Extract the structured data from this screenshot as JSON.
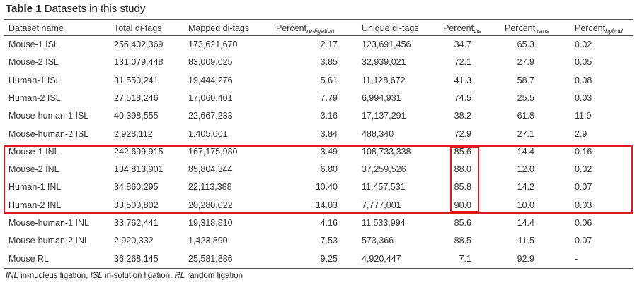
{
  "table": {
    "title_bold": "Table 1",
    "title_rest": "Datasets in this study",
    "headers": {
      "name": "Dataset name",
      "total": "Total di-tags",
      "mapped": "Mapped di-tags",
      "relig_base": "Percent",
      "relig_sub": "re-ligation",
      "unique": "Unique di-tags",
      "cis_base": "Percent",
      "cis_sub": "cis",
      "trans_base": "Percent",
      "trans_sub": "trans",
      "hybrid_base": "Percent",
      "hybrid_sub": "hybrid"
    },
    "rows": [
      {
        "name": "Mouse-1 ISL",
        "total": "255,402,369",
        "mapped": "173,621,670",
        "relig": "2.17",
        "unique": "123,691,456",
        "cis": "34.7",
        "trans": "65.3",
        "hybrid": "0.02"
      },
      {
        "name": "Mouse-2 ISL",
        "total": "131,079,448",
        "mapped": "83,009,025",
        "relig": "3.85",
        "unique": "32,939,021",
        "cis": "72.1",
        "trans": "27.9",
        "hybrid": "0.05"
      },
      {
        "name": "Human-1 ISL",
        "total": "31,550,241",
        "mapped": "19,444,276",
        "relig": "5.61",
        "unique": "11,128,672",
        "cis": "41.3",
        "trans": "58.7",
        "hybrid": "0.08"
      },
      {
        "name": "Human-2 ISL",
        "total": "27,518,246",
        "mapped": "17,060,401",
        "relig": "7.79",
        "unique": "6,994,931",
        "cis": "74.5",
        "trans": "25.5",
        "hybrid": "0.03"
      },
      {
        "name": "Mouse-human-1 ISL",
        "total": "40,398,555",
        "mapped": "22,667,233",
        "relig": "3.16",
        "unique": "17,137,291",
        "cis": "38.2",
        "trans": "61.8",
        "hybrid": "11.9"
      },
      {
        "name": "Mouse-human-2 ISL",
        "total": "2,928,112",
        "mapped": "1,405,001",
        "relig": "3.84",
        "unique": "488,340",
        "cis": "72.9",
        "trans": "27.1",
        "hybrid": "2.9"
      },
      {
        "name": "Mouse-1 INL",
        "total": "242,699,915",
        "mapped": "167,175,980",
        "relig": "3.49",
        "unique": "108,733,338",
        "cis": "85.6",
        "trans": "14.4",
        "hybrid": "0.16"
      },
      {
        "name": "Mouse-2 INL",
        "total": "134,813,901",
        "mapped": "85,804,344",
        "relig": "6.80",
        "unique": "37,259,526",
        "cis": "88.0",
        "trans": "12.0",
        "hybrid": "0.02"
      },
      {
        "name": "Human-1 INL",
        "total": "34,860,295",
        "mapped": "22,113,388",
        "relig": "10.40",
        "unique": "11,457,531",
        "cis": "85.8",
        "trans": "14.2",
        "hybrid": "0.07"
      },
      {
        "name": "Human-2 INL",
        "total": "33,500,802",
        "mapped": "20,280,022",
        "relig": "14.03",
        "unique": "7,777,001",
        "cis": "90.0",
        "trans": "10.0",
        "hybrid": "0.03"
      },
      {
        "name": "Mouse-human-1 INL",
        "total": "33,762,441",
        "mapped": "19,318,810",
        "relig": "4.16",
        "unique": "11,533,994",
        "cis": "85.6",
        "trans": "14.4",
        "hybrid": "0.06"
      },
      {
        "name": "Mouse-human-2 INL",
        "total": "2,920,332",
        "mapped": "1,423,890",
        "relig": "7.53",
        "unique": "573,366",
        "cis": "88.5",
        "trans": "11.5",
        "hybrid": "0.07"
      },
      {
        "name": "Mouse RL",
        "total": "36,268,145",
        "mapped": "25,581,886",
        "relig": "9.25",
        "unique": "4,920,447",
        "cis": "7.1",
        "trans": "92.9",
        "hybrid": "-"
      }
    ],
    "footnote": {
      "abbr1": "INL",
      "def1": " in-nucleus ligation, ",
      "abbr2": "ISL",
      "def2": " in-solution ligation, ",
      "abbr3": "RL",
      "def3": " random ligation"
    }
  },
  "highlight_color": "#e0191b"
}
